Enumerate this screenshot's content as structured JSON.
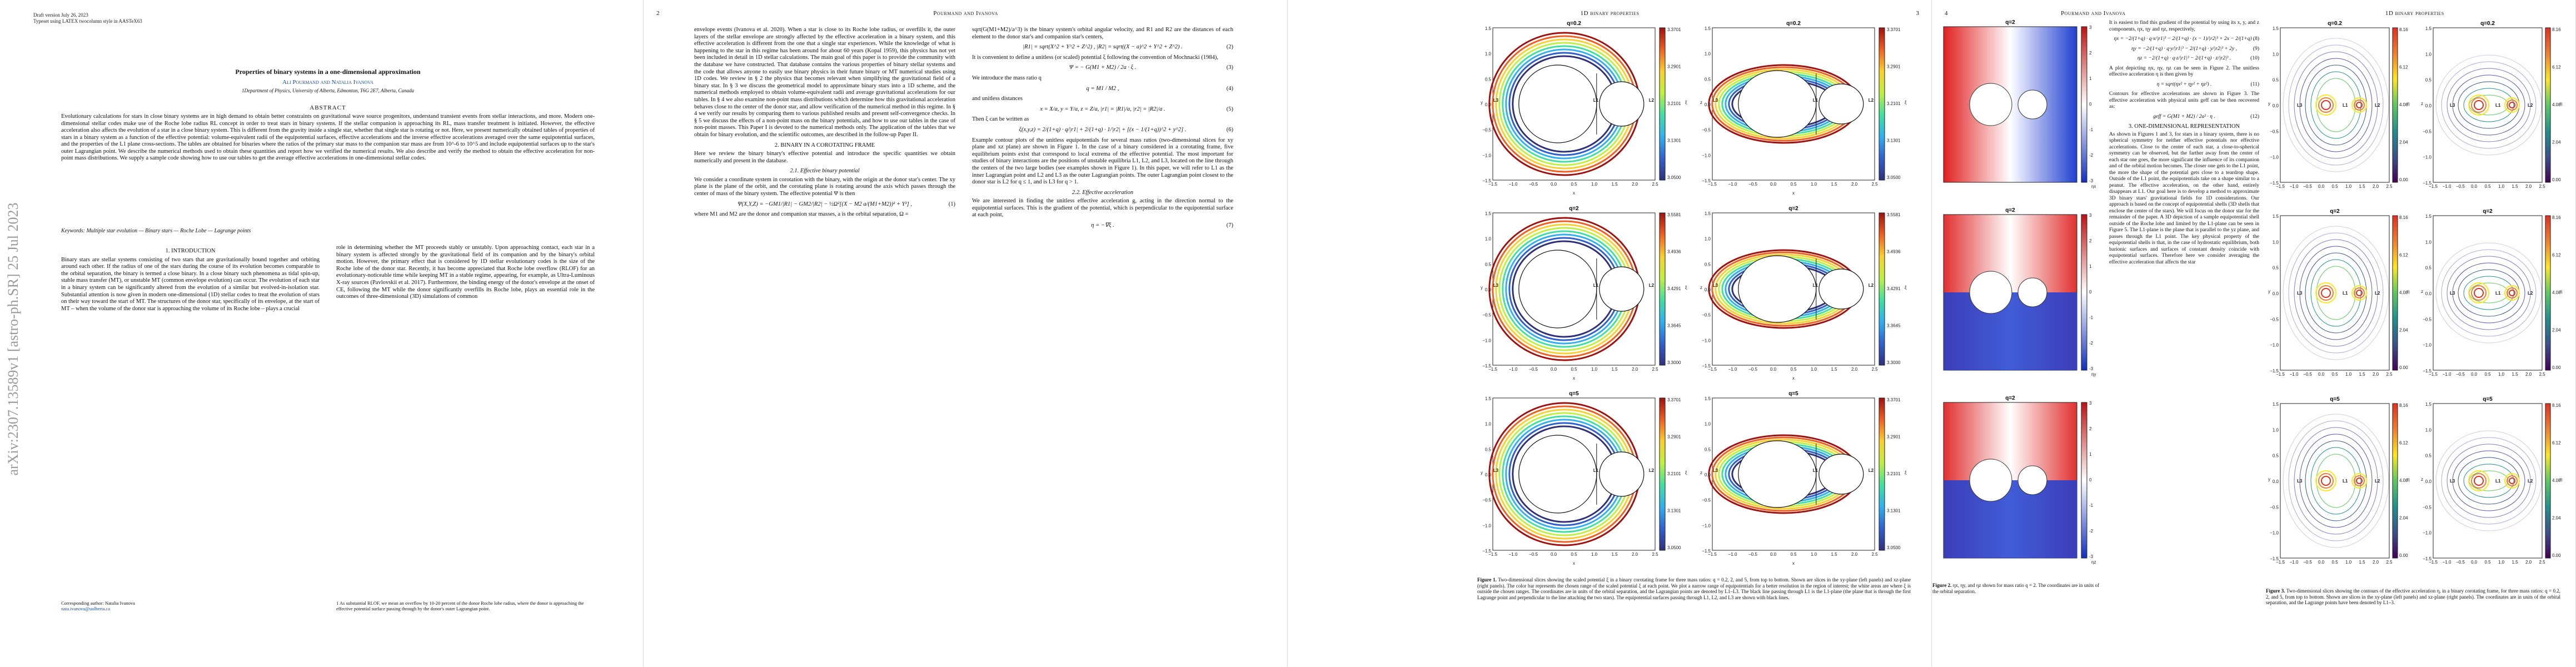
{
  "sidebar": {
    "arxiv_id": "arXiv:2307.13589v1  [astro-ph.SR]  25 Jul 2023"
  },
  "page1": {
    "draft": "Draft version July 26, 2023",
    "typeset": "Typeset using LATEX twocolumn style in AASTeX63",
    "title": "Properties of binary systems in a one-dimensional approximation",
    "authors": "Ali Pourmand and Natalia Ivanova",
    "affiliation": "1Department of Physics, University of Alberta, Edmonton, T6G 2E7, Alberta, Canada",
    "abstract_heading": "ABSTRACT",
    "abstract": "Evolutionary calculations for stars in close binary systems are in high demand to obtain better constraints on gravitational wave source progenitors, understand transient events from stellar interactions, and more. Modern one-dimensional stellar codes make use of the Roche lobe radius RL concept in order to treat stars in binary systems. If the stellar companion is approaching its RL, mass transfer treatment is initiated. However, the effective acceleration also affects the evolution of a star in a close binary system. This is different from the gravity inside a single star, whether that single star is rotating or not. Here, we present numerically obtained tables of properties of stars in a binary system as a function of the effective potential: volume-equivalent radii of the equipotential surfaces, effective accelerations and the inverse effective accelerations averaged over the same equipotential surfaces, and the properties of the L1 plane cross-sections. The tables are obtained for binaries where the ratios of the primary star mass to the companion star mass are from 10^-6 to 10^5 and include equipotential surfaces up to the star's outer Lagrangian point. We describe the numerical methods used to obtain these quantities and report how we verified the numerical results. We also describe and verify the method to obtain the effective acceleration for non-point mass distributions. We supply a sample code showing how to use our tables to get the average effective accelerations in one-dimensional stellar codes.",
    "keywords": "Keywords: Multiple star evolution — Binary stars — Roche Lobe — Lagrange points",
    "intro_heading": "1. INTRODUCTION",
    "col_left": "Binary stars are stellar systems consisting of two stars that are gravitationally bound together and orbiting around each other. If the radius of one of the stars during the course of its evolution becomes comparable to the orbital separation, the binary is termed a close binary. In a close binary such phenomena as tidal spin-up, stable mass transfer (MT), or unstable MT (common envelope evolution) can occur. The evolution of each star in a binary system can be significantly altered from the evolution of a similar but evolved-in-isolation star. Substantial attention is now given in modern one-dimensional (1D) stellar codes to treat the evolution of stars on their way toward the start of MT. The structures of the donor star, specifically of its envelope, at the start of MT – when the volume of the donor star is approaching the volume of its Roche lobe – plays a crucial",
    "col_right": "role in determining whether the MT proceeds stably or unstably. Upon approaching contact, each star in a binary system is affected strongly by the gravitational field of its companion and by the binary's orbital motion. However, the primary effect that is considered by 1D stellar evolutionary codes is the size of the Roche lobe of the donor star. Recently, it has become appreciated that Roche lobe overflow (RLOF) for an evolutionary-noticeable time while keeping MT in a stable regime, appearing, for example, as Ultra-Luminous X-ray sources (Pavlovskii et al. 2017). Furthermore, the binding energy of the donor's envelope at the onset of CE, following the MT while the donor significantly overfills its Roche lobe, plays an essential role in the outcomes of three-dimensional (3D) simulations of common",
    "corr_author": "Corresponding author: Natalia Ivanova",
    "corr_email": "nata.ivanova@ualberta.ca",
    "footnote": "1 As substantial RLOF, we mean an overflow by 10-20 percent of the donor Roche lobe radius, where the donor is approaching the effective potential surface passing through by the donor's outer Lagrangian point."
  },
  "page2": {
    "page_number": "2",
    "running_head": "Pourmand and Ivanova",
    "col_left_a": "sqrt(G(M1+M2)/a^3) is the binary system's orbital angular velocity, and R1 and R2 are the distances of each element to the donor star's and companion star's centers,",
    "eq2": "|R1| = sqrt(X^2 + Y^2 + Z^2) , |R2| = sqrt((X − a)^2 + Y^2 + Z^2) .",
    "eq2_n": "(2)",
    "col_left_b": "It is convenient to define a unitless (or scaled) potential ξ following the convention of Mochnacki (1984),",
    "eq3": "Ψ = − G(M1 + M2) / 2a · ξ .",
    "eq3_n": "(3)",
    "col_left_c": "We introduce the mass ratio q",
    "eq4": "q = M1 / M2 ,",
    "eq4_n": "(4)",
    "col_left_d": "and unitless distances",
    "eq5": "x = X/a, y = Y/a, z = Z/a, |r1| = |R1|/a, |r2| = |R2|/a .",
    "eq5_n": "(5)",
    "col_left_e": "Then ξ can be written as",
    "eq6": "ξ(x,y,z) = 2/(1+q) · q/|r1| + 2/(1+q) · 1/|r2| + [(x − 1/(1+q))^2 + y^2] .",
    "eq6_n": "(6)",
    "col_left_f": "Example contour plots of the unitless equipotentials for several mass ratios (two-dimensional slices for xy plane and xz plane) are shown in Figure 1. In the case of a binary considered in a corotating frame, five equilibrium points exist that correspond to local extrema of the effective potential. The most important for studies of binary interactions are the positions of unstable equilibria L1, L2, and L3, located on the line through the centers of the two large bodies (see examples shown in Figure 1). In this paper, we will refer to L1 as the inner Lagrangian point and L2 and L3 as the outer Lagrangian points. The outer Lagrangian point closest to the donor star is L2 for q ≤ 1, and is L3 for q > 1.",
    "subsec_22": "2.2. Effective acceleration",
    "col_left_g": "We are interested in finding the unitless effective acceleration g, acting in the direction normal to the equipotential surfaces. This is the gradient of the potential, which is perpendicular to the equipotential surface at each point,",
    "eq7": "η = −∇ξ .",
    "eq7_n": "(7)",
    "col_right": "envelope events (Ivanova et al. 2020). When a star is close to its Roche lobe radius, or overfills it, the outer layers of the stellar envelope are strongly affected by the effective acceleration in a binary system, and this effective acceleration is different from the one that a single star experiences. While the knowledge of what is happening to the star in this regime has been around for about 60 years (Kopal 1959), this physics has not yet been included in detail in 1D stellar calculations. The main goal of this paper is to provide the community with the database we have constructed. That database contains the various properties of binary stellar systems and the code that allows anyone to easily use binary physics in their future binary or MT numerical studies using 1D codes. We review in § 2 the physics that becomes relevant when simplifying the gravitational field of a binary star. In § 3 we discuss the geometrical model to approximate binary stars into a 1D scheme, and the numerical methods employed to obtain volume-equivalent radii and average gravitational accelerations for our tables. In § 4 we also examine non-point mass distributions which determine how this gravitational acceleration behaves close to the center of the donor star, and allow verification of the numerical method in this regime. In § 4 we verify our results by comparing them to various published results and present self-convergence checks. In § 5 we discuss the effects of a non-point mass on the binary potentials, and how to use our tables in the case of non-point masses. This Paper I is devoted to the numerical methods only. The application of the tables that we obtain for binary evolution, and the scientific outcomes, are described in the follow-up Paper II.",
    "sec2": "2. BINARY IN A COROTATING FRAME",
    "col_right_b": "Here we review the binary binary's effective potential and introduce the specific quantities we obtain numerically and present in the database.",
    "subsec_21": "2.1. Effective binary potential",
    "col_right_c": "We consider a coordinate system in corotation with the binary, with the origin at the donor star's center. The xy plane is the plane of the orbit, and the corotating plane is rotating around the axis which passes through the center of mass of the binary system. The effective potential Ψ is then",
    "eq1": "Ψ(X,Y,Z) = −GM1/|R1| − GM2/|R2| − ½Ω²[(X − M2 a/(M1+M2))² + Y²] ,",
    "eq1_n": "(1)",
    "col_right_d": "where M1 and M2 are the donor and companion star masses, a is the orbital separation, Ω ="
  },
  "page3": {
    "page_number": "3",
    "running_head": "1D binary properties",
    "caption_label": "Figure 1.",
    "caption": "Two-dimensional slices showing the scaled potential ξ in a binary corotating frame for three mass ratios: q = 0.2, 2, and 5, from top to bottom. Shown are slices in the xy-plane (left panels) and xz-plane (right panels). The color bar represents the chosen range of the scaled potential ξ at each point. We plot a narrow range of equipotentials for a better resolution in the region of interest; the white areas are where ξ is outside the chosen ranges. The coordinates are in units of the orbital separation, and the Lagrangian points are denoted by L1–L3. The black line passing through L1 is the L1-plane (the plane that is through the first Lagrange point and perpendicular to the line attaching the two stars). The equipotential surfaces passing through L1, L2, and L3 are shown with black lines.",
    "plots": [
      {
        "title": "q=0.2",
        "cb": [
          "3.3701",
          "3.2901",
          "3.2101",
          "3.1301",
          "3.0500"
        ],
        "xlabel": "x",
        "ylabel": "y"
      },
      {
        "title": "q=0.2",
        "cb": [
          "3.3701",
          "3.2901",
          "3.2101",
          "3.1301",
          "3.0500"
        ],
        "xlabel": "x",
        "ylabel": "z"
      },
      {
        "title": "q=2",
        "cb": [
          "3.5581",
          "3.4936",
          "3.4291",
          "3.3645",
          "3.3000"
        ],
        "xlabel": "x",
        "ylabel": "y"
      },
      {
        "title": "q=2",
        "cb": [
          "3.5581",
          "3.4936",
          "3.4291",
          "3.3645",
          "3.3000"
        ],
        "xlabel": "x",
        "ylabel": "z"
      },
      {
        "title": "q=5",
        "cb": [
          "3.3701",
          "3.2901",
          "3.2101",
          "3.1301",
          "3.0500"
        ],
        "xlabel": "x",
        "ylabel": "y"
      },
      {
        "title": "q=5",
        "cb": [
          "3.3701",
          "3.2901",
          "3.2101",
          "3.1301",
          "3.0500"
        ],
        "xlabel": "x",
        "ylabel": "z"
      }
    ],
    "xticks": [
      "−1.5",
      "−1.0",
      "−0.5",
      "0.0",
      "0.5",
      "1.0",
      "1.5",
      "2.0",
      "2.5"
    ],
    "yticks": [
      "1.5",
      "1.0",
      "0.5",
      "0.0",
      "−0.5",
      "−1.0",
      "−1.5"
    ],
    "cb_label": "ξ",
    "lagrange": [
      "L1",
      "L2",
      "L3"
    ]
  },
  "page4": {
    "page_number": "4",
    "running_head": "Pourmand and Ivanova",
    "running_head_r": "1D binary properties",
    "col_a": "It is easiest to find this gradient of the potential by using its x, y, and z components, ηx, ηy and ηz, respectively,",
    "eq8": "ηx = −2/(1+q) · q·x/|r1|³ − 2/(1+q) · (x − 1)/|r2|³ + 2x − 2/(1+q) ,",
    "eq8_n": "(8)",
    "eq9": "ηy = −2/(1+q) · q·y/|r1|³ − 2/(1+q) · y/|r2|³ + 2y ,",
    "eq9_n": "(9)",
    "eq10": "ηz = −2/(1+q) · q·z/|r1|³ − 2/(1+q) · z/|r2|³ .",
    "eq10_n": "(10)",
    "col_b": "A plot depicting ηx, ηy, ηz can be seen in Figure 2. The unitless effective acceleration η is then given by",
    "eq11": "η = sqrt(ηx² + ηy² + ηz²) .",
    "eq11_n": "(11)",
    "col_c": "Contours for effective accelerations are shown in Figure 3. The effective acceleration with physical units geff can be then recovered as:",
    "eq12": "geff = G(M1 + M2) / 2a² · η .",
    "eq12_n": "(12)",
    "sec3": "3. ONE-DIMENSIONAL REPRESENTATION",
    "col_d": "As shown in Figures 1 and 3, for stars in a binary system, there is no spherical symmetry for neither effective potentials nor effective accelerations. Close to the center of each star, a close-to-spherical symmetry can be observed, but the farther away from the center of each star one goes, the more significant the influence of its companion and of the orbital motion becomes. The closer one gets to the L1 point, the more the shape of the potential gets close to a teardrop shape. Outside of the L1 point, the equipotentials take on a shape similar to a peanut. The effective acceleration, on the other hand, entirely disappears at L1. Our goal here is to develop a method to approximate 3D binary stars' gravitational fields for 1D considerations. Our approach is based on the concept of equipotential shells (3D shells that enclose the center of the stars). We will focus on the donor star for the remainder of the paper. A 3D depiction of a sample equipotential shell outside of the Roche lobe and limited by the L1-plane can be seen in Figure 5. The L1-plane is the plane that is parallel to the yz plane, and passes through the L1 point. The key physical property of the equipotential shells is that, in the case of hydrostatic equilibrium, both barionic surfaces and surfaces of constant density coincide with equipotential surfaces. Therefore here we consider averaging the effective acceleration that affects the star",
    "fig2_caption_label": "Figure 2.",
    "fig2_caption": "ηx, ηy, and ηz shown for mass ratio q = 2. The coordinates are in units of the orbital separation.",
    "fig2_plots": [
      {
        "title": "q=2",
        "cb": [
          "3",
          "2",
          "1",
          "0",
          "-1",
          "-2",
          "-3"
        ],
        "label": "ηx"
      },
      {
        "title": "q=2",
        "cb": [
          "3",
          "2",
          "1",
          "0",
          "-1",
          "-2",
          "-3"
        ],
        "label": "ηy"
      },
      {
        "title": "q=2",
        "cb": [
          "3",
          "2",
          "1",
          "0",
          "-1",
          "-2",
          "-3"
        ],
        "label": "ηz"
      }
    ],
    "fig3_caption_label": "Figure 3.",
    "fig3_caption": "Two-dimensional slices showing the contours of the effective acceleration η, in a binary corotating frame, for three mass ratios: q = 0.2, 2, and 5, from top to bottom. Shown are slices in the xy-plane (left panels) and xz-plane (right panels). The coordinates are in units of the orbital separation, and the Lagrange points have been denoted by L1–3.",
    "fig3_plots": [
      {
        "title": "q=0.2",
        "cb": [
          "8.16",
          "6.12",
          "4.08",
          "2.04",
          "0.00"
        ],
        "ylabel": "y"
      },
      {
        "title": "q=0.2",
        "cb": [
          "8.16",
          "6.12",
          "4.08",
          "2.04",
          "0.00"
        ],
        "ylabel": "z"
      },
      {
        "title": "q=2",
        "cb": [
          "8.16",
          "6.12",
          "4.08",
          "2.04",
          "0.00"
        ],
        "ylabel": "y"
      },
      {
        "title": "q=2",
        "cb": [
          "8.16",
          "6.12",
          "4.08",
          "2.04",
          "0.00"
        ],
        "ylabel": "z"
      },
      {
        "title": "q=5",
        "cb": [
          "8.16",
          "6.12",
          "4.08",
          "2.04",
          "0.00"
        ],
        "ylabel": "y"
      },
      {
        "title": "q=5",
        "cb": [
          "8.16",
          "6.12",
          "4.08",
          "2.04",
          "0.00"
        ],
        "ylabel": "z"
      }
    ],
    "fig3_xticks": [
      "−1.5",
      "−1.0",
      "−0.5",
      "0.0",
      "0.5",
      "1.0",
      "1.5",
      "2.0",
      "2.5"
    ],
    "fig3_yticks": [
      "1.5",
      "1.0",
      "0.5",
      "0.0",
      "−0.5",
      "−1.0",
      "−1.5"
    ],
    "fig3_cb_label": "η"
  }
}
